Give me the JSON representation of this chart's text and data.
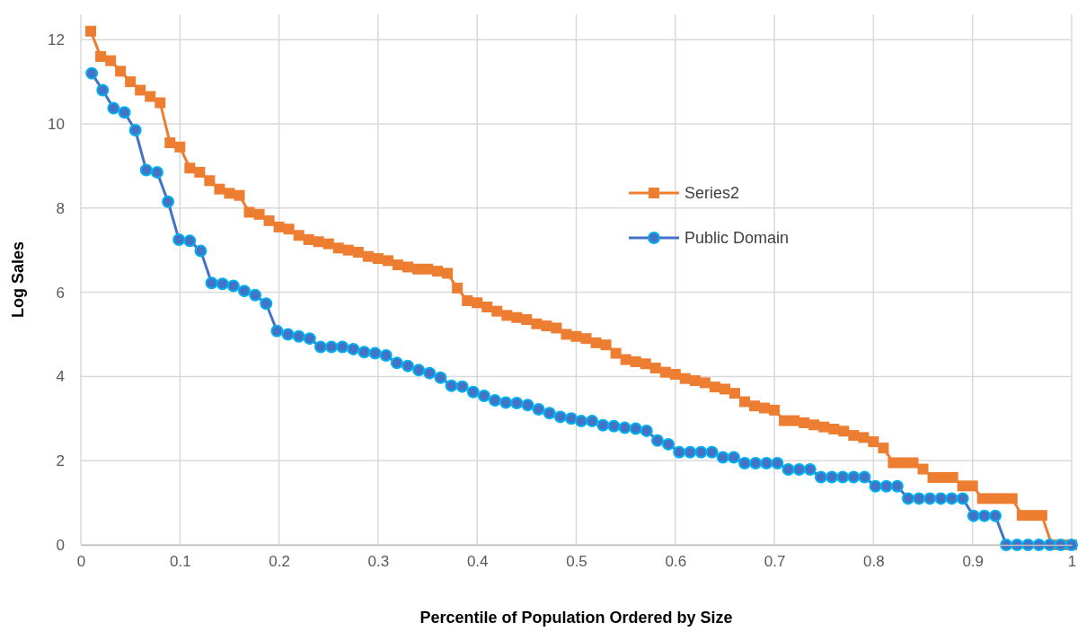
{
  "chart_data": {
    "type": "line",
    "xlabel": "Percentile of Population Ordered by Size",
    "ylabel": "Log Sales",
    "xlim": [
      0,
      1
    ],
    "xticks": [
      0,
      0.1,
      0.2,
      0.3,
      0.4,
      0.5,
      0.6,
      0.7,
      0.8,
      0.9,
      1
    ],
    "ylim": [
      0,
      12.6
    ],
    "yticks": [
      0,
      2,
      4,
      6,
      8,
      10,
      12
    ],
    "grid": true,
    "legend": "right",
    "series": [
      {
        "name": "Series2",
        "color": "#ed7d31",
        "marker": "square",
        "x": [
          0.01,
          0.02,
          0.03,
          0.04,
          0.05,
          0.06,
          0.07,
          0.08,
          0.09,
          0.1,
          0.11,
          0.12,
          0.13,
          0.14,
          0.15,
          0.16,
          0.17,
          0.18,
          0.19,
          0.2,
          0.21,
          0.22,
          0.23,
          0.24,
          0.25,
          0.26,
          0.27,
          0.28,
          0.29,
          0.3,
          0.31,
          0.32,
          0.33,
          0.34,
          0.35,
          0.36,
          0.37,
          0.38,
          0.39,
          0.4,
          0.41,
          0.42,
          0.43,
          0.44,
          0.45,
          0.46,
          0.47,
          0.48,
          0.49,
          0.5,
          0.51,
          0.52,
          0.53,
          0.54,
          0.55,
          0.56,
          0.57,
          0.58,
          0.59,
          0.6,
          0.61,
          0.62,
          0.63,
          0.64,
          0.65,
          0.66,
          0.67,
          0.68,
          0.69,
          0.7,
          0.71,
          0.72,
          0.73,
          0.74,
          0.75,
          0.76,
          0.77,
          0.78,
          0.79,
          0.8,
          0.81,
          0.82,
          0.83,
          0.84,
          0.85,
          0.86,
          0.87,
          0.88,
          0.89,
          0.9,
          0.91,
          0.92,
          0.93,
          0.94,
          0.95,
          0.96,
          0.97,
          0.98,
          0.99,
          1
        ],
        "values": [
          12.2,
          11.6,
          11.5,
          11.25,
          11,
          10.8,
          10.65,
          10.5,
          9.55,
          9.45,
          8.95,
          8.85,
          8.65,
          8.45,
          8.35,
          8.3,
          7.9,
          7.85,
          7.7,
          7.55,
          7.5,
          7.35,
          7.25,
          7.2,
          7.15,
          7.05,
          7,
          6.95,
          6.85,
          6.8,
          6.75,
          6.65,
          6.6,
          6.55,
          6.55,
          6.5,
          6.45,
          6.1,
          5.8,
          5.75,
          5.65,
          5.55,
          5.45,
          5.4,
          5.35,
          5.25,
          5.2,
          5.15,
          5,
          4.95,
          4.9,
          4.8,
          4.75,
          4.55,
          4.4,
          4.35,
          4.3,
          4.2,
          4.1,
          4.05,
          3.95,
          3.9,
          3.85,
          3.75,
          3.7,
          3.6,
          3.4,
          3.3,
          3.25,
          3.2,
          2.95,
          2.95,
          2.9,
          2.85,
          2.8,
          2.75,
          2.7,
          2.6,
          2.55,
          2.45,
          2.3,
          1.95,
          1.95,
          1.95,
          1.8,
          1.6,
          1.6,
          1.6,
          1.4,
          1.4,
          1.1,
          1.1,
          1.1,
          1.1,
          0.7,
          0.7,
          0.7,
          0,
          0,
          0
        ]
      },
      {
        "name": "Public Domain",
        "color": "#4472c4",
        "marker": "circle",
        "x": [
          0.011,
          0.022,
          0.033,
          0.044,
          0.055,
          0.066,
          0.077,
          0.088,
          0.099,
          0.11,
          0.121,
          0.132,
          0.143,
          0.154,
          0.165,
          0.176,
          0.187,
          0.198,
          0.209,
          0.22,
          0.231,
          0.242,
          0.253,
          0.264,
          0.275,
          0.286,
          0.297,
          0.308,
          0.319,
          0.33,
          0.341,
          0.352,
          0.363,
          0.374,
          0.385,
          0.396,
          0.407,
          0.418,
          0.429,
          0.44,
          0.451,
          0.462,
          0.473,
          0.484,
          0.495,
          0.505,
          0.516,
          0.527,
          0.538,
          0.549,
          0.56,
          0.571,
          0.582,
          0.593,
          0.604,
          0.615,
          0.626,
          0.637,
          0.648,
          0.659,
          0.67,
          0.681,
          0.692,
          0.703,
          0.714,
          0.725,
          0.736,
          0.747,
          0.758,
          0.769,
          0.78,
          0.791,
          0.802,
          0.813,
          0.824,
          0.835,
          0.846,
          0.857,
          0.868,
          0.879,
          0.89,
          0.901,
          0.912,
          0.923,
          0.934,
          0.945,
          0.956,
          0.967,
          0.978,
          0.989,
          1
        ],
        "values": [
          11.2,
          10.8,
          10.37,
          10.27,
          9.85,
          8.9,
          8.85,
          8.15,
          7.25,
          7.22,
          6.98,
          6.22,
          6.2,
          6.15,
          6.03,
          5.93,
          5.73,
          5.08,
          5,
          4.95,
          4.9,
          4.7,
          4.7,
          4.7,
          4.65,
          4.58,
          4.55,
          4.5,
          4.32,
          4.25,
          4.15,
          4.08,
          3.97,
          3.78,
          3.76,
          3.63,
          3.54,
          3.43,
          3.38,
          3.37,
          3.32,
          3.22,
          3.13,
          3.04,
          3,
          2.94,
          2.94,
          2.84,
          2.82,
          2.78,
          2.76,
          2.71,
          2.48,
          2.39,
          2.2,
          2.2,
          2.2,
          2.2,
          2.08,
          2.08,
          1.94,
          1.94,
          1.94,
          1.94,
          1.79,
          1.79,
          1.79,
          1.61,
          1.61,
          1.61,
          1.61,
          1.61,
          1.39,
          1.39,
          1.39,
          1.1,
          1.1,
          1.1,
          1.1,
          1.1,
          1.1,
          0.69,
          0.69,
          0.69,
          0,
          0,
          0,
          0,
          0,
          0,
          0
        ]
      }
    ]
  }
}
